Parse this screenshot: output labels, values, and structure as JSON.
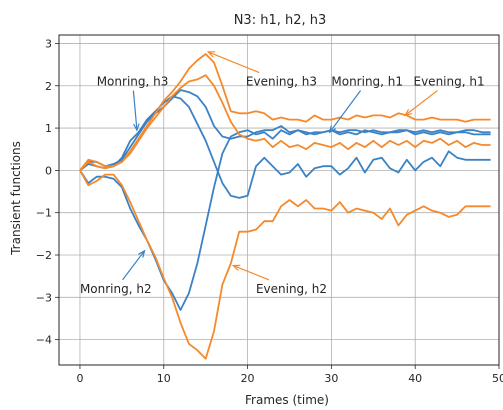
{
  "chart_data": {
    "type": "line",
    "title": "N3: h1, h2, h3",
    "xlabel": "Frames (time)",
    "ylabel": "Transient functions",
    "xlim": [
      -2.5,
      50
    ],
    "ylim": [
      -4.6,
      3.2
    ],
    "xticks": [
      0,
      10,
      20,
      30,
      40,
      50
    ],
    "yticks": [
      -4,
      -3,
      -2,
      -1,
      0,
      1,
      2,
      3
    ],
    "grid": true,
    "colors": {
      "blue": "#3b82c4",
      "orange": "#f5892b"
    },
    "series": [
      {
        "color": "blue",
        "x": [
          0,
          1,
          2,
          3,
          4,
          5,
          6,
          7,
          8,
          9,
          10,
          11,
          12,
          13,
          14,
          15,
          16,
          17,
          18,
          19,
          20,
          21,
          22,
          23,
          24,
          25,
          26,
          27,
          28,
          29,
          30,
          31,
          32,
          33,
          34,
          35,
          36,
          37,
          38,
          39,
          40,
          41,
          42,
          43,
          44,
          45,
          46,
          47,
          48,
          49
        ],
        "y": [
          0,
          0.15,
          0.1,
          0.05,
          0.1,
          0.3,
          0.7,
          0.9,
          1.2,
          1.4,
          1.6,
          1.75,
          1.7,
          1.5,
          1.1,
          0.7,
          0.2,
          -0.3,
          -0.6,
          -0.65,
          -0.6,
          0.1,
          0.3,
          0.1,
          -0.1,
          -0.05,
          0.15,
          -0.15,
          0.05,
          0.1,
          0.1,
          -0.1,
          0.05,
          0.3,
          -0.05,
          0.25,
          0.3,
          0.05,
          -0.05,
          0.25,
          0.0,
          0.2,
          0.3,
          0.1,
          0.45,
          0.3,
          0.25,
          0.25,
          0.25,
          0.25
        ]
      },
      {
        "color": "blue",
        "x": [
          0,
          1,
          2,
          3,
          4,
          5,
          6,
          7,
          8,
          9,
          10,
          11,
          12,
          13,
          14,
          15,
          16,
          17,
          18,
          19,
          20,
          21,
          22,
          23,
          24,
          25,
          26,
          27,
          28,
          29,
          30,
          31,
          32,
          33,
          34,
          35,
          36,
          37,
          38,
          39,
          40,
          41,
          42,
          43,
          44,
          45,
          46,
          47,
          48,
          49
        ],
        "y": [
          0,
          0.2,
          0.2,
          0.1,
          0.15,
          0.25,
          0.55,
          0.85,
          1.15,
          1.35,
          1.5,
          1.7,
          1.9,
          1.85,
          1.75,
          1.5,
          1.05,
          0.8,
          0.75,
          0.8,
          0.8,
          0.9,
          0.95,
          0.95,
          1.05,
          0.9,
          0.95,
          0.85,
          0.9,
          0.9,
          0.95,
          0.9,
          0.95,
          0.95,
          0.9,
          0.95,
          0.9,
          0.9,
          0.95,
          0.95,
          0.9,
          0.95,
          0.9,
          0.95,
          0.9,
          0.9,
          0.95,
          0.95,
          0.9,
          0.9
        ]
      },
      {
        "color": "blue",
        "x": [
          0,
          1,
          2,
          3,
          4,
          5,
          6,
          7,
          8,
          9,
          10,
          11,
          12,
          13,
          14,
          15,
          16,
          17,
          18,
          19,
          20,
          21,
          22,
          23,
          24,
          25,
          26,
          27,
          28,
          29,
          30,
          31,
          32,
          33,
          34,
          35,
          36,
          37,
          38,
          39,
          40,
          41,
          42,
          43,
          44,
          45,
          46,
          47,
          48,
          49
        ],
        "y": [
          0,
          -0.3,
          -0.15,
          -0.15,
          -0.2,
          -0.4,
          -0.9,
          -1.3,
          -1.65,
          -2.1,
          -2.6,
          -2.9,
          -3.3,
          -2.9,
          -2.2,
          -1.3,
          -0.4,
          0.4,
          0.8,
          0.9,
          0.95,
          0.85,
          0.9,
          0.75,
          0.95,
          0.85,
          0.95,
          0.9,
          0.85,
          0.9,
          0.95,
          0.85,
          0.9,
          0.85,
          0.95,
          0.9,
          0.85,
          0.9,
          0.9,
          0.95,
          0.85,
          0.9,
          0.85,
          0.9,
          0.85,
          0.9,
          0.9,
          0.85,
          0.85,
          0.85
        ]
      },
      {
        "color": "orange",
        "x": [
          0,
          1,
          2,
          3,
          4,
          5,
          6,
          7,
          8,
          9,
          10,
          11,
          12,
          13,
          14,
          15,
          16,
          17,
          18,
          19,
          20,
          21,
          22,
          23,
          24,
          25,
          26,
          27,
          28,
          29,
          30,
          31,
          32,
          33,
          34,
          35,
          36,
          37,
          38,
          39,
          40,
          41,
          42,
          43,
          44,
          45,
          46,
          47,
          48,
          49
        ],
        "y": [
          0,
          0.25,
          0.2,
          0.1,
          0.1,
          0.2,
          0.45,
          0.75,
          1.05,
          1.35,
          1.65,
          1.85,
          2.1,
          2.4,
          2.6,
          2.75,
          2.55,
          2.0,
          1.4,
          1.35,
          1.35,
          1.4,
          1.35,
          1.2,
          1.25,
          1.2,
          1.2,
          1.15,
          1.3,
          1.2,
          1.2,
          1.25,
          1.2,
          1.3,
          1.25,
          1.3,
          1.3,
          1.25,
          1.35,
          1.3,
          1.2,
          1.2,
          1.25,
          1.2,
          1.2,
          1.2,
          1.15,
          1.2,
          1.2,
          1.2
        ]
      },
      {
        "color": "orange",
        "x": [
          0,
          1,
          2,
          3,
          4,
          5,
          6,
          7,
          8,
          9,
          10,
          11,
          12,
          13,
          14,
          15,
          16,
          17,
          18,
          19,
          20,
          21,
          22,
          23,
          24,
          25,
          26,
          27,
          28,
          29,
          30,
          31,
          32,
          33,
          34,
          35,
          36,
          37,
          38,
          39,
          40,
          41,
          42,
          43,
          44,
          45,
          46,
          47,
          48,
          49
        ],
        "y": [
          0,
          0.2,
          0.1,
          0.05,
          0.1,
          0.2,
          0.4,
          0.7,
          1.0,
          1.25,
          1.5,
          1.75,
          1.95,
          2.1,
          2.15,
          2.25,
          2.0,
          1.6,
          1.15,
          0.85,
          0.75,
          0.7,
          0.75,
          0.55,
          0.7,
          0.55,
          0.6,
          0.5,
          0.65,
          0.6,
          0.55,
          0.65,
          0.5,
          0.65,
          0.55,
          0.7,
          0.55,
          0.7,
          0.6,
          0.7,
          0.55,
          0.7,
          0.65,
          0.75,
          0.6,
          0.7,
          0.55,
          0.65,
          0.6,
          0.6
        ]
      },
      {
        "color": "orange",
        "x": [
          0,
          1,
          2,
          3,
          4,
          5,
          6,
          7,
          8,
          9,
          10,
          11,
          12,
          13,
          14,
          15,
          16,
          17,
          18,
          19,
          20,
          21,
          22,
          23,
          24,
          25,
          26,
          27,
          28,
          29,
          30,
          31,
          32,
          33,
          34,
          35,
          36,
          37,
          38,
          39,
          40,
          41,
          42,
          43,
          44,
          45,
          46,
          47,
          48,
          49
        ],
        "y": [
          0,
          -0.35,
          -0.25,
          -0.1,
          -0.1,
          -0.35,
          -0.75,
          -1.2,
          -1.65,
          -2.05,
          -2.55,
          -3.0,
          -3.6,
          -4.1,
          -4.25,
          -4.45,
          -3.8,
          -2.7,
          -2.2,
          -1.45,
          -1.45,
          -1.4,
          -1.2,
          -1.2,
          -0.85,
          -0.7,
          -0.85,
          -0.7,
          -0.9,
          -0.9,
          -0.95,
          -0.75,
          -1.0,
          -0.9,
          -0.95,
          -1.0,
          -1.15,
          -0.9,
          -1.3,
          -1.05,
          -0.95,
          -0.85,
          -0.95,
          -1.0,
          -1.1,
          -1.05,
          -0.85,
          -0.85,
          -0.85,
          -0.85
        ]
      }
    ],
    "annotations": [
      {
        "text": "Monring, h3",
        "xy": [
          6.8,
          0.95
        ],
        "xytext": [
          2,
          2.1
        ]
      },
      {
        "text": "Evening, h3",
        "xy": [
          15.3,
          2.8
        ],
        "xytext": [
          19.8,
          2.1
        ]
      },
      {
        "text": "Monring, h1",
        "xy": [
          29.8,
          0.9
        ],
        "xytext": [
          30,
          2.1
        ]
      },
      {
        "text": "Evening, h1",
        "xy": [
          38.8,
          1.3
        ],
        "xytext": [
          39.8,
          2.1
        ]
      },
      {
        "text": "Monring, h2",
        "xy": [
          7.7,
          -1.9
        ],
        "xytext": [
          0,
          -2.8
        ]
      },
      {
        "text": "Evening, h2",
        "xy": [
          18.3,
          -2.25
        ],
        "xytext": [
          21,
          -2.8
        ]
      }
    ]
  }
}
